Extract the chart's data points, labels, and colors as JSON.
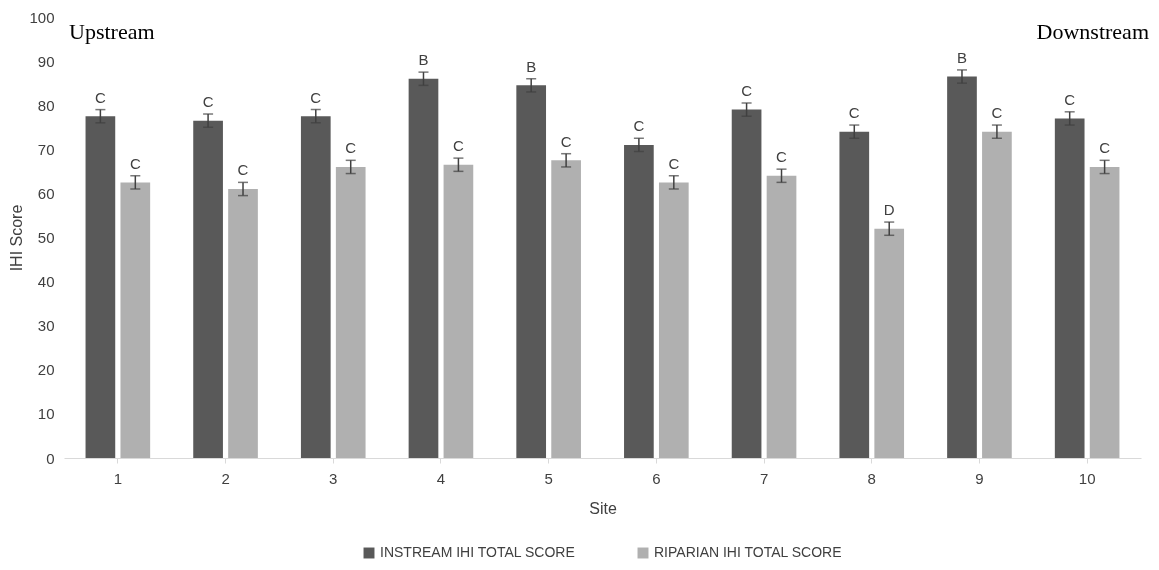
{
  "chart_data": {
    "type": "bar",
    "xlabel": "Site",
    "ylabel": "IHI Score",
    "categories": [
      "1",
      "2",
      "3",
      "4",
      "5",
      "6",
      "7",
      "8",
      "9",
      "10"
    ],
    "series": [
      {
        "name": "INSTREAM IHI TOTAL SCORE",
        "color": "#595959",
        "values": [
          77.5,
          76.5,
          77.5,
          86,
          84.5,
          71,
          79,
          74,
          86.5,
          77
        ],
        "errors": [
          1.5,
          1.5,
          1.5,
          1.5,
          1.5,
          1.5,
          1.5,
          1.5,
          1.5,
          1.5
        ],
        "value_labels": [
          "C",
          "C",
          "C",
          "B",
          "B",
          "C",
          "C",
          "C",
          "B",
          "C"
        ]
      },
      {
        "name": "RIPARIAN IHI TOTAL SCORE",
        "color": "#b0b0b0",
        "values": [
          62.5,
          61,
          66,
          66.5,
          67.5,
          62.5,
          64,
          52,
          74,
          66
        ],
        "errors": [
          1.5,
          1.5,
          1.5,
          1.5,
          1.5,
          1.5,
          1.5,
          1.5,
          1.5,
          1.5
        ],
        "value_labels": [
          "C",
          "C",
          "C",
          "C",
          "C",
          "C",
          "C",
          "D",
          "C",
          "C"
        ]
      }
    ],
    "ylim": [
      0,
      100
    ],
    "yticks": [
      0,
      10,
      20,
      30,
      40,
      50,
      60,
      70,
      80,
      90,
      100
    ],
    "grid": false,
    "legend": "bottom",
    "annotations": [
      "Upstream",
      "Downstream"
    ]
  }
}
